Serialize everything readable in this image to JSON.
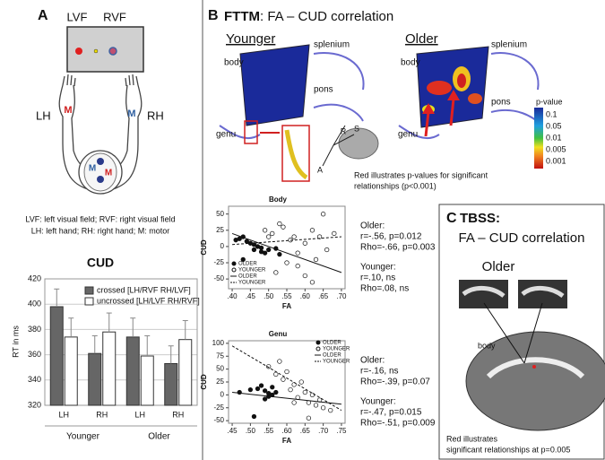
{
  "panel_a": {
    "letter": "A",
    "screen": {
      "left": "LVF",
      "right": "RVF"
    },
    "hands": {
      "left": "LH",
      "right": "RH",
      "left_motor": "M",
      "right_motor": "M"
    },
    "brain": {
      "left_motor": "M",
      "right_motor": "M"
    },
    "caption": [
      "LVF: left visual field; RVF: right visual field",
      "LH: left hand; RH: right hand; M: motor"
    ],
    "bar_chart": {
      "type": "bar",
      "title": "CUD",
      "y_label": "RT in ms",
      "categories": [
        "LH",
        "RH",
        "LH",
        "RH"
      ],
      "groups": [
        "Younger",
        "Older"
      ],
      "series": [
        {
          "name": "crossed [LH/RVF  RH/LVF]",
          "color": "#666666",
          "values": [
            398,
            361,
            374,
            353
          ],
          "errors": [
            14,
            14,
            15,
            14
          ]
        },
        {
          "name": "uncrossed [LH/LVF  RH/RVF]",
          "color": "#ffffff",
          "values": [
            374,
            378,
            359,
            372
          ],
          "errors": [
            15,
            15,
            16,
            15
          ]
        }
      ],
      "ylim": [
        320,
        420
      ],
      "yticks": [
        320,
        340,
        360,
        380,
        400,
        420
      ]
    }
  },
  "panel_b": {
    "letter": "B",
    "title_bold": "FTTM",
    "title_rest": ": FA – CUD correlation",
    "younger": {
      "heading": "Younger",
      "labels": [
        "body",
        "splenium",
        "pons",
        "genu"
      ]
    },
    "older": {
      "heading": "Older",
      "labels": [
        "body",
        "splenium",
        "pons",
        "genu"
      ]
    },
    "orientation": [
      "R",
      "S",
      "A"
    ],
    "colorbar": {
      "title": "p-value",
      "labels": [
        "0.1",
        "0.05",
        "0.01",
        "0.005",
        "0.001"
      ]
    },
    "caption": [
      "Red illustrates p-values for significant",
      "relationships (p<0.001)"
    ],
    "scatters": [
      {
        "type": "scatter",
        "title": "Body",
        "x_label": "FA",
        "y_label": "CUD",
        "xlim": [
          0.39,
          0.71
        ],
        "ylim": [
          -65,
          62
        ],
        "xticks": [
          {
            "value": 0.4,
            "label": ".40"
          },
          {
            "value": 0.45,
            "label": ".45"
          },
          {
            "value": 0.5,
            "label": ".50"
          },
          {
            "value": 0.55,
            "label": ".55"
          },
          {
            "value": 0.6,
            "label": ".60"
          },
          {
            "value": 0.65,
            "label": ".65"
          },
          {
            "value": 0.7,
            "label": ".70"
          }
        ],
        "yticks": [
          -50,
          -25,
          0,
          25,
          50
        ],
        "series": [
          {
            "name": "OLDER",
            "filled": true,
            "x": [
              0.41,
              0.42,
              0.43,
              0.44,
              0.45,
              0.46,
              0.46,
              0.47,
              0.48,
              0.48,
              0.49,
              0.5,
              0.52,
              0.53,
              0.43
            ],
            "y": [
              10,
              12,
              15,
              8,
              5,
              3,
              -5,
              0,
              -2,
              -8,
              -10,
              -5,
              -3,
              -12,
              -20
            ]
          },
          {
            "name": "YOUNGER",
            "filled": false,
            "x": [
              0.49,
              0.5,
              0.51,
              0.53,
              0.54,
              0.56,
              0.57,
              0.58,
              0.6,
              0.62,
              0.63,
              0.64,
              0.66,
              0.68,
              0.65,
              0.55,
              0.52,
              0.58,
              0.6,
              0.62
            ],
            "y": [
              25,
              15,
              20,
              35,
              30,
              10,
              15,
              -10,
              5,
              25,
              -20,
              15,
              -5,
              20,
              50,
              -25,
              -40,
              -30,
              -45,
              -55
            ]
          }
        ],
        "fit_lines": [
          {
            "name": "OLDER",
            "dashed": false,
            "x": [
              0.4,
              0.7
            ],
            "y": [
              20,
              -40
            ]
          },
          {
            "name": "YOUNGER",
            "dashed": true,
            "x": [
              0.4,
              0.7
            ],
            "y": [
              3,
              15
            ]
          }
        ],
        "stats": [
          "Older:",
          "r=-.56, p=0.012",
          "Rho=-.66, p=0.003",
          "Younger:",
          "r=.10, ns",
          "Rho=.08, ns"
        ]
      },
      {
        "type": "scatter",
        "title": "Genu",
        "x_label": "FA",
        "y_label": "CUD",
        "xlim": [
          0.44,
          0.76
        ],
        "ylim": [
          -55,
          105
        ],
        "xticks": [
          {
            "value": 0.45,
            "label": ".45"
          },
          {
            "value": 0.5,
            "label": ".50"
          },
          {
            "value": 0.55,
            "label": ".55"
          },
          {
            "value": 0.6,
            "label": ".60"
          },
          {
            "value": 0.65,
            "label": ".65"
          },
          {
            "value": 0.7,
            "label": ".70"
          },
          {
            "value": 0.75,
            "label": ".75"
          }
        ],
        "yticks": [
          -50,
          -25,
          0,
          25,
          50,
          75,
          100
        ],
        "series": [
          {
            "name": "OLDER",
            "filled": true,
            "x": [
              0.47,
              0.5,
              0.52,
              0.53,
              0.54,
              0.55,
              0.55,
              0.56,
              0.57,
              0.54,
              0.51,
              0.56
            ],
            "y": [
              5,
              10,
              12,
              18,
              8,
              3,
              -3,
              0,
              5,
              -8,
              -42,
              15
            ]
          },
          {
            "name": "YOUNGER",
            "filled": false,
            "x": [
              0.55,
              0.57,
              0.59,
              0.6,
              0.61,
              0.62,
              0.63,
              0.64,
              0.65,
              0.66,
              0.67,
              0.68,
              0.69,
              0.7,
              0.72,
              0.58,
              0.62,
              0.66
            ],
            "y": [
              55,
              40,
              30,
              45,
              10,
              20,
              -5,
              25,
              5,
              -15,
              0,
              -20,
              -10,
              -25,
              -30,
              65,
              -15,
              -45
            ]
          }
        ],
        "fit_lines": [
          {
            "name": "OLDER",
            "dashed": false,
            "x": [
              0.45,
              0.75
            ],
            "y": [
              5,
              -18
            ]
          },
          {
            "name": "YOUNGER",
            "dashed": true,
            "x": [
              0.45,
              0.75
            ],
            "y": [
              95,
              -30
            ]
          }
        ],
        "stats": [
          "Older:",
          "r=-.16, ns",
          "Rho=-.39, p=0.07",
          "Younger:",
          "r=-.47, p=0.015",
          "Rho=-.51, p=0.009"
        ]
      }
    ]
  },
  "panel_c": {
    "letter": "C",
    "title_bold": "TBSS:",
    "subtitle": "FA – CUD correlation",
    "heading": "Older",
    "label": "body",
    "caption": [
      "Red illustrates",
      "significant relationships  at p=0.005"
    ]
  }
}
